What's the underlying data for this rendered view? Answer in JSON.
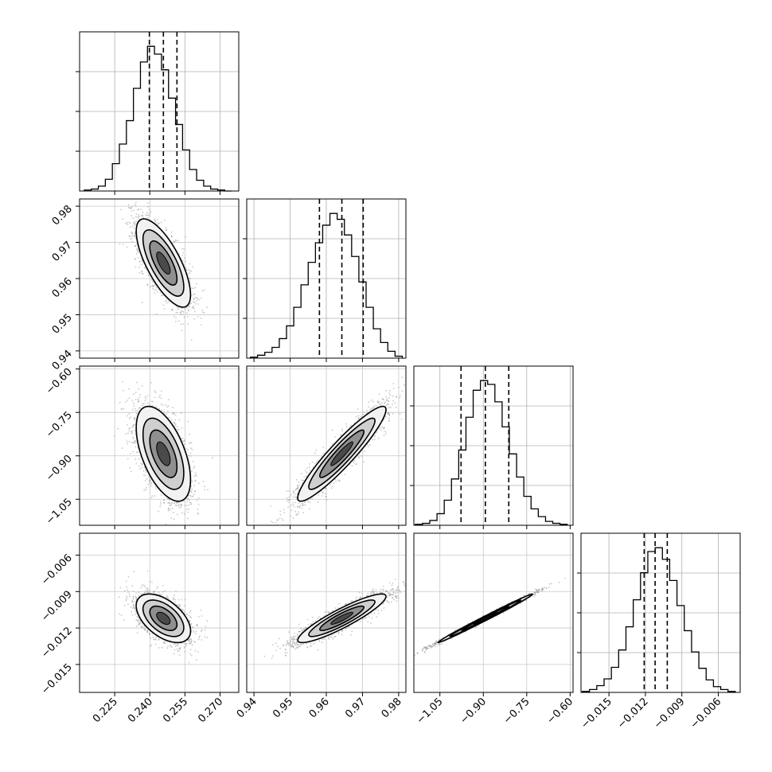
{
  "chart_data": {
    "type": "corner",
    "title": "",
    "grid": true,
    "parameters": [
      {
        "label": "",
        "range": [
          0.21,
          0.278
        ],
        "ticks": [
          "0.225",
          "0.240",
          "0.255",
          "0.270"
        ],
        "tick_values": [
          0.225,
          0.24,
          0.255,
          0.27
        ]
      },
      {
        "label": "",
        "range": [
          0.938,
          0.982
        ],
        "ticks": [
          "0.94",
          "0.95",
          "0.96",
          "0.97",
          "0.98"
        ],
        "tick_values": [
          0.94,
          0.95,
          0.96,
          0.97,
          0.98
        ]
      },
      {
        "label": "",
        "range": [
          -1.14,
          -0.59
        ],
        "ticks": [
          "-1.05",
          "-0.90",
          "-0.75",
          "-0.60"
        ],
        "tick_values": [
          -1.05,
          -0.9,
          -0.75,
          -0.6
        ]
      },
      {
        "label": "",
        "range": [
          -0.0173,
          -0.0042
        ],
        "ticks": [
          "-0.015",
          "-0.012",
          "-0.009",
          "-0.006"
        ],
        "tick_values": [
          -0.015,
          -0.012,
          -0.009,
          -0.006
        ]
      }
    ],
    "y_ticks": [
      {
        "row": 1,
        "ticks": [
          "0.94",
          "0.95",
          "0.96",
          "0.97",
          "0.98"
        ],
        "tick_values": [
          0.94,
          0.95,
          0.96,
          0.97,
          0.98
        ]
      },
      {
        "row": 2,
        "ticks": [
          "-1.05",
          "-0.90",
          "-0.75",
          "-0.60"
        ],
        "tick_values": [
          -1.05,
          -0.9,
          -0.75,
          -0.6
        ]
      },
      {
        "row": 3,
        "ticks": [
          "-0.015",
          "-0.012",
          "-0.009",
          "-0.006"
        ],
        "tick_values": [
          -0.015,
          -0.012,
          -0.009,
          -0.006
        ]
      }
    ],
    "histograms": [
      {
        "param": 0,
        "bins": [
          0.212,
          0.215,
          0.218,
          0.221,
          0.224,
          0.227,
          0.23,
          0.233,
          0.236,
          0.239,
          0.242,
          0.245,
          0.248,
          0.251,
          0.254,
          0.257,
          0.26,
          0.263,
          0.266,
          0.269,
          0.272,
          0.275
        ],
        "counts": [
          1,
          2,
          5,
          12,
          28,
          48,
          72,
          105,
          132,
          148,
          140,
          124,
          95,
          68,
          42,
          22,
          11,
          5,
          2,
          1,
          0
        ],
        "quantiles": [
          0.2398,
          0.2458,
          0.2516
        ]
      },
      {
        "param": 1,
        "bins": [
          0.939,
          0.941,
          0.943,
          0.945,
          0.947,
          0.949,
          0.951,
          0.953,
          0.955,
          0.957,
          0.959,
          0.961,
          0.963,
          0.965,
          0.967,
          0.969,
          0.971,
          0.973,
          0.975,
          0.977,
          0.979,
          0.981
        ],
        "counts": [
          1,
          3,
          6,
          11,
          20,
          33,
          52,
          75,
          98,
          118,
          136,
          148,
          142,
          126,
          104,
          78,
          52,
          30,
          16,
          7,
          2
        ],
        "quantiles": [
          0.9581,
          0.9643,
          0.9702
        ]
      },
      {
        "param": 2,
        "bins": [
          -1.135,
          -1.11,
          -1.085,
          -1.06,
          -1.035,
          -1.01,
          -0.985,
          -0.96,
          -0.935,
          -0.91,
          -0.885,
          -0.86,
          -0.835,
          -0.81,
          -0.785,
          -0.76,
          -0.735,
          -0.71,
          -0.685,
          -0.66,
          -0.635,
          -0.61
        ],
        "counts": [
          1,
          2,
          5,
          12,
          26,
          48,
          78,
          112,
          140,
          150,
          146,
          128,
          102,
          74,
          50,
          30,
          17,
          9,
          4,
          2,
          1
        ],
        "quantiles": [
          -0.977,
          -0.893,
          -0.812
        ]
      },
      {
        "param": 3,
        "bins": [
          -0.0172,
          -0.0166,
          -0.016,
          -0.0154,
          -0.0148,
          -0.0142,
          -0.0136,
          -0.013,
          -0.0124,
          -0.0118,
          -0.0112,
          -0.0106,
          -0.01,
          -0.0094,
          -0.0088,
          -0.0082,
          -0.0076,
          -0.007,
          -0.0064,
          -0.0058,
          -0.0052,
          -0.0046
        ],
        "counts": [
          1,
          3,
          7,
          14,
          26,
          44,
          68,
          96,
          124,
          146,
          150,
          138,
          116,
          90,
          64,
          42,
          25,
          13,
          6,
          3,
          1
        ],
        "quantiles": [
          -0.0121,
          -0.0112,
          -0.0102
        ]
      }
    ],
    "scatter_panels": [
      {
        "x": 0,
        "y": 1,
        "center": [
          0.2458,
          0.9643
        ],
        "sigma": [
          0.0058,
          0.0061
        ],
        "rho": -0.72
      },
      {
        "x": 0,
        "y": 2,
        "center": [
          0.2458,
          -0.893
        ],
        "sigma": [
          0.0058,
          0.082
        ],
        "rho": -0.55
      },
      {
        "x": 1,
        "y": 2,
        "center": [
          0.9643,
          -0.893
        ],
        "sigma": [
          0.0061,
          0.082
        ],
        "rho": 0.93
      },
      {
        "x": 0,
        "y": 3,
        "center": [
          0.2458,
          -0.0112
        ],
        "sigma": [
          0.0058,
          0.001
        ],
        "rho": -0.52
      },
      {
        "x": 1,
        "y": 3,
        "center": [
          0.9643,
          -0.0112
        ],
        "sigma": [
          0.0061,
          0.001
        ],
        "rho": 0.9
      },
      {
        "x": 2,
        "y": 3,
        "center": [
          -0.893,
          -0.0112
        ],
        "sigma": [
          0.082,
          0.001
        ],
        "rho": 0.995
      }
    ]
  }
}
